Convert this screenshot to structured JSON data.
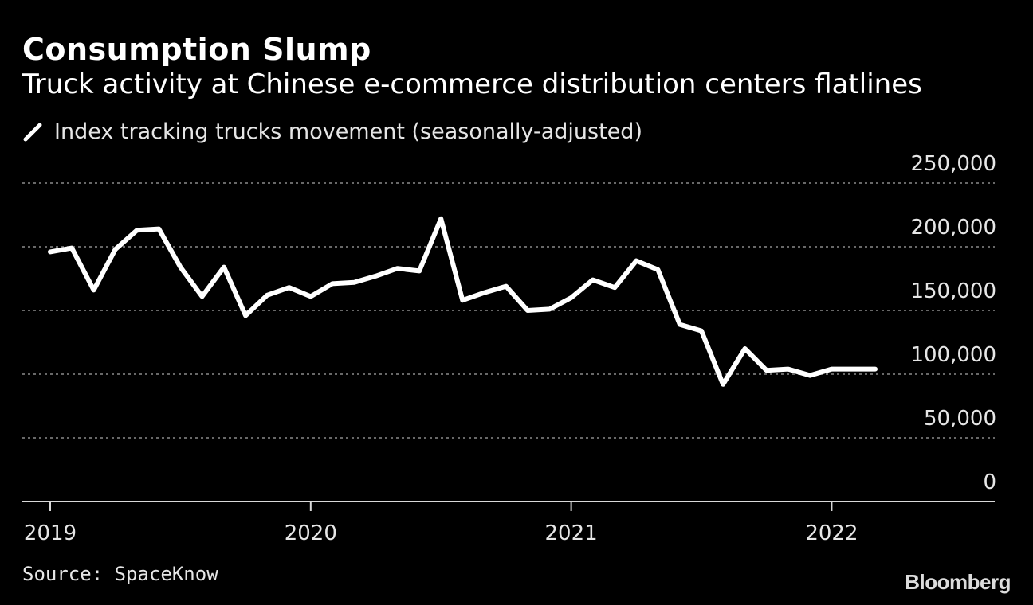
{
  "title": "Consumption Slump",
  "subtitle": "Truck activity at Chinese e-commerce distribution centers flatlines",
  "legend": {
    "label": "Index tracking trucks movement (seasonally-adjusted)",
    "icon": "line-swatch-icon"
  },
  "source": "Source: SpaceKnow",
  "logo": "Bloomberg",
  "colors": {
    "background": "#000000",
    "line": "#ffffff",
    "grid": "#8a8a8a",
    "text": "#e6e6e6"
  },
  "chart_data": {
    "type": "line",
    "title": "Consumption Slump",
    "subtitle": "Truck activity at Chinese e-commerce distribution centers flatlines",
    "xlabel": "",
    "ylabel": "",
    "x_range": [
      2018.97,
      2022.75
    ],
    "ylim": [
      0,
      250000
    ],
    "yticks": [
      0,
      50000,
      100000,
      150000,
      200000,
      250000
    ],
    "ytick_labels": [
      "0",
      "50,000",
      "100,000",
      "150,000",
      "200,000",
      "250,000"
    ],
    "xticks": [
      {
        "value": 2019.0,
        "label": "2019"
      },
      {
        "value": 2020.0,
        "label": "2020"
      },
      {
        "value": 2021.0,
        "label": "2021"
      },
      {
        "value": 2022.0,
        "label": "2022"
      }
    ],
    "grid": true,
    "legend_position": "top-left",
    "series": [
      {
        "name": "Index tracking trucks movement (seasonally-adjusted)",
        "x": [
          2019.0,
          2019.083,
          2019.167,
          2019.25,
          2019.333,
          2019.417,
          2019.5,
          2019.583,
          2019.667,
          2019.75,
          2019.833,
          2019.917,
          2020.0,
          2020.083,
          2020.167,
          2020.25,
          2020.333,
          2020.417,
          2020.5,
          2020.583,
          2020.667,
          2020.75,
          2020.833,
          2020.917,
          2021.0,
          2021.083,
          2021.167,
          2021.25,
          2021.333,
          2021.417,
          2021.5,
          2021.583,
          2021.667,
          2021.75,
          2021.833,
          2021.917,
          2022.0,
          2022.083,
          2022.167
        ],
        "values": [
          196000,
          199000,
          166000,
          198000,
          213000,
          214000,
          184000,
          161000,
          184000,
          146000,
          162000,
          168000,
          161000,
          171000,
          172000,
          177000,
          183000,
          181000,
          222000,
          158000,
          164000,
          169000,
          150000,
          151000,
          160000,
          174000,
          168000,
          189000,
          182000,
          139000,
          134000,
          92000,
          120000,
          103000,
          104000,
          99000,
          104000,
          104000,
          104000
        ]
      }
    ]
  }
}
